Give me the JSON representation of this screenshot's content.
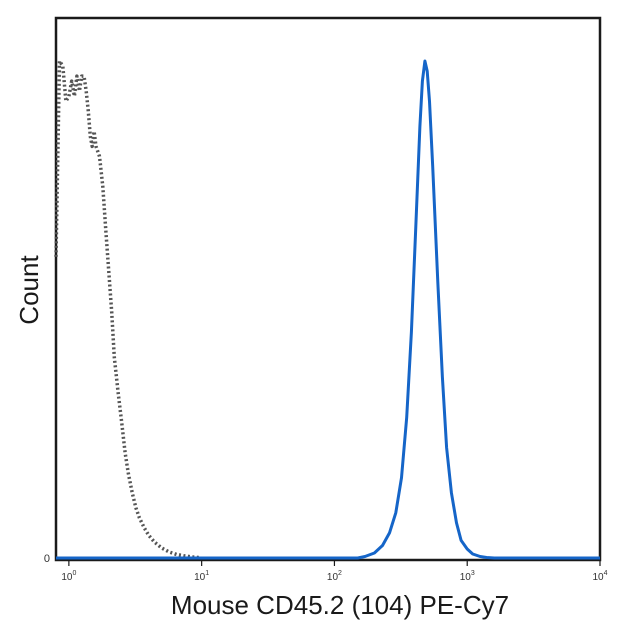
{
  "chart_data": {
    "type": "line",
    "title": "",
    "xlabel": "Mouse CD45.2 (104) PE-Cy7",
    "ylabel": "Count",
    "x_scale": "log",
    "xlim": [
      0.8,
      10000
    ],
    "ylim": [
      0,
      1
    ],
    "x_ticks": [
      {
        "value": 1,
        "base": "10",
        "exp": "0"
      },
      {
        "value": 10,
        "base": "10",
        "exp": "1"
      },
      {
        "value": 100,
        "base": "10",
        "exp": "2"
      },
      {
        "value": 1000,
        "base": "10",
        "exp": "3"
      },
      {
        "value": 10000,
        "base": "10",
        "exp": "4"
      }
    ],
    "y_ticks": [
      {
        "value": 0,
        "label": "0"
      }
    ],
    "grid": false,
    "legend": "none",
    "series": [
      {
        "style": "dotted",
        "color": "#555555",
        "x": [
          0.8,
          0.85,
          0.9,
          0.95,
          1.0,
          1.05,
          1.1,
          1.15,
          1.2,
          1.25,
          1.3,
          1.35,
          1.4,
          1.45,
          1.5,
          1.55,
          1.6,
          1.7,
          1.8,
          1.9,
          2.0,
          2.1,
          2.2,
          2.35,
          2.5,
          2.65,
          2.8,
          3.0,
          3.2,
          3.4,
          3.7,
          4.0,
          4.4,
          5.0,
          5.7,
          6.5,
          7.5,
          8.5,
          9.5
        ],
        "y": [
          0.6,
          0.99,
          0.98,
          0.91,
          0.92,
          0.95,
          0.92,
          0.96,
          0.93,
          0.96,
          0.96,
          0.93,
          0.89,
          0.84,
          0.82,
          0.85,
          0.82,
          0.8,
          0.74,
          0.65,
          0.57,
          0.49,
          0.4,
          0.33,
          0.27,
          0.21,
          0.17,
          0.13,
          0.1,
          0.08,
          0.06,
          0.045,
          0.032,
          0.02,
          0.012,
          0.007,
          0.004,
          0.002,
          0.001
        ]
      },
      {
        "style": "solid",
        "color": "#1565c8",
        "x": [
          0.8,
          150,
          170,
          200,
          230,
          260,
          290,
          320,
          350,
          380,
          410,
          440,
          460,
          480,
          500,
          520,
          550,
          600,
          650,
          700,
          760,
          830,
          900,
          1000,
          1100,
          1250,
          1400,
          1600,
          10000
        ],
        "y": [
          0,
          0,
          0.003,
          0.01,
          0.025,
          0.05,
          0.09,
          0.16,
          0.28,
          0.45,
          0.66,
          0.86,
          0.95,
          0.99,
          0.97,
          0.91,
          0.78,
          0.55,
          0.36,
          0.22,
          0.13,
          0.07,
          0.035,
          0.018,
          0.008,
          0.003,
          0.001,
          0,
          0
        ]
      }
    ]
  }
}
